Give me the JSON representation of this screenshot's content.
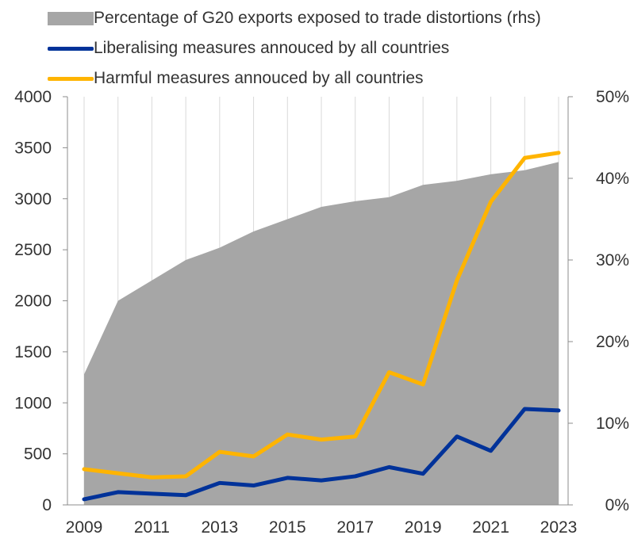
{
  "chart_data": {
    "type": "area",
    "x": [
      2009,
      2010,
      2011,
      2012,
      2013,
      2014,
      2015,
      2016,
      2017,
      2018,
      2019,
      2020,
      2021,
      2022,
      2023
    ],
    "x_tick_labels": [
      "2009",
      "2011",
      "2013",
      "2015",
      "2017",
      "2019",
      "2021",
      "2023"
    ],
    "left_axis": {
      "ylim": [
        0,
        4000
      ],
      "ticks": [
        "0",
        "500",
        "1000",
        "1500",
        "2000",
        "2500",
        "3000",
        "3500",
        "4000"
      ]
    },
    "right_axis": {
      "ylim": [
        0,
        0.5
      ],
      "ticks": [
        "0%",
        "10%",
        "20%",
        "30%",
        "40%",
        "50%"
      ]
    },
    "grid": "vertical",
    "legend_position": "top",
    "series": [
      {
        "name": "Percentage of G20 exports exposed to trade distortions (rhs)",
        "type": "area",
        "axis": "right",
        "color": "#a6a6a6",
        "values": [
          0.16,
          0.25,
          0.275,
          0.3,
          0.315,
          0.335,
          0.35,
          0.365,
          0.372,
          0.377,
          0.392,
          0.397,
          0.405,
          0.41,
          0.42
        ]
      },
      {
        "name": "Liberalising measures annouced by all countries",
        "type": "line",
        "axis": "left",
        "color": "#003299",
        "values": [
          55,
          125,
          110,
          95,
          215,
          190,
          265,
          240,
          280,
          370,
          305,
          670,
          530,
          940,
          925
        ]
      },
      {
        "name": "Harmful measures annouced by all countries",
        "type": "line",
        "axis": "left",
        "color": "#ffb400",
        "values": [
          350,
          310,
          270,
          280,
          520,
          475,
          690,
          640,
          670,
          1300,
          1180,
          2200,
          2970,
          3400,
          3450
        ]
      }
    ]
  }
}
